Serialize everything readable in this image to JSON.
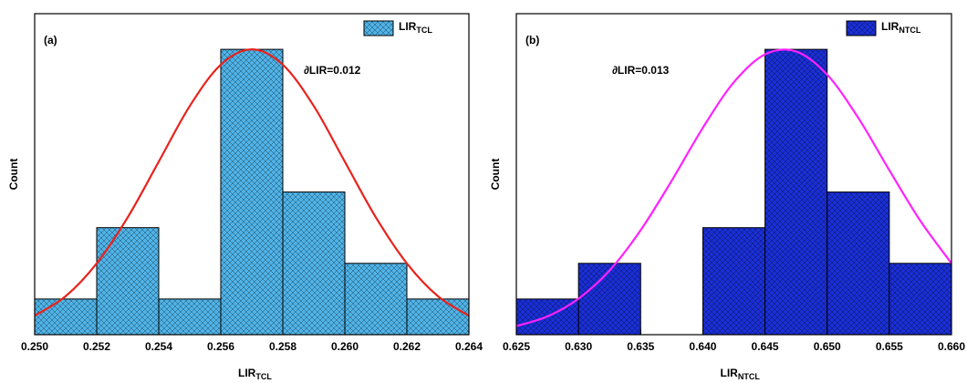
{
  "chart_data": [
    {
      "type": "histogram",
      "panel_label": "(a)",
      "annotation": "∂LIR=0.012",
      "y_label": "Count",
      "x_label": {
        "text": "LIR",
        "subscript": "TCL"
      },
      "legend": "upper right",
      "xlim": [
        0.25,
        0.264
      ],
      "ylim": [
        0,
        9
      ],
      "xticks": [
        {
          "value": 0.25,
          "label": "0.250"
        },
        {
          "value": 0.252,
          "label": "0.252"
        },
        {
          "value": 0.254,
          "label": "0.254"
        },
        {
          "value": 0.256,
          "label": "0.256"
        },
        {
          "value": 0.258,
          "label": "0.258"
        },
        {
          "value": 0.26,
          "label": "0.260"
        },
        {
          "value": 0.262,
          "label": "0.262"
        },
        {
          "value": 0.264,
          "label": "0.264"
        }
      ],
      "series": [
        {
          "name": {
            "text": "LIR",
            "subscript": "TCL"
          },
          "color": "#4fb3e8",
          "bins": [
            0.25,
            0.252,
            0.254,
            0.256,
            0.258,
            0.26,
            0.262,
            0.264
          ],
          "values": [
            1,
            3,
            1,
            8,
            4,
            2,
            1
          ]
        }
      ],
      "fit": {
        "color": "#e8231e",
        "x": [
          0.25,
          0.251,
          0.252,
          0.253,
          0.254,
          0.255,
          0.256,
          0.257,
          0.258,
          0.259,
          0.26,
          0.261,
          0.262,
          0.263,
          0.264
        ],
        "values": [
          0.53,
          1.08,
          2.0,
          3.29,
          4.85,
          6.41,
          7.57,
          8,
          7.57,
          6.41,
          4.85,
          3.29,
          2.0,
          1.08,
          0.53
        ]
      }
    },
    {
      "type": "histogram",
      "panel_label": "(b)",
      "annotation": "∂LIR=0.013",
      "y_label": "Count",
      "x_label": {
        "text": "LIR",
        "subscript": "NTCL"
      },
      "legend": "upper right",
      "xlim": [
        0.625,
        0.66
      ],
      "ylim": [
        0,
        9
      ],
      "xticks": [
        {
          "value": 0.625,
          "label": "0.625"
        },
        {
          "value": 0.63,
          "label": "0.630"
        },
        {
          "value": 0.635,
          "label": "0.635"
        },
        {
          "value": 0.64,
          "label": "0.640"
        },
        {
          "value": 0.645,
          "label": "0.645"
        },
        {
          "value": 0.65,
          "label": "0.650"
        },
        {
          "value": 0.655,
          "label": "0.655"
        },
        {
          "value": 0.66,
          "label": "0.660"
        }
      ],
      "series": [
        {
          "name": {
            "text": "LIR",
            "subscript": "NTCL"
          },
          "color": "#1a2fd6",
          "bins": [
            0.625,
            0.63,
            0.635,
            0.64,
            0.645,
            0.65,
            0.655,
            0.66
          ],
          "values": [
            1,
            2,
            0,
            3,
            8,
            4,
            2
          ]
        }
      ],
      "fit": {
        "color": "#ff22ff",
        "x": [
          0.625,
          0.6275,
          0.63,
          0.6325,
          0.635,
          0.6375,
          0.64,
          0.6425,
          0.645,
          0.6475,
          0.65,
          0.6525,
          0.655,
          0.6575,
          0.66
        ],
        "values": [
          0.24,
          0.51,
          1.01,
          1.8,
          2.93,
          4.32,
          5.8,
          7.08,
          7.86,
          7.94,
          7.29,
          6.08,
          4.61,
          3.19,
          2.0
        ]
      }
    }
  ]
}
